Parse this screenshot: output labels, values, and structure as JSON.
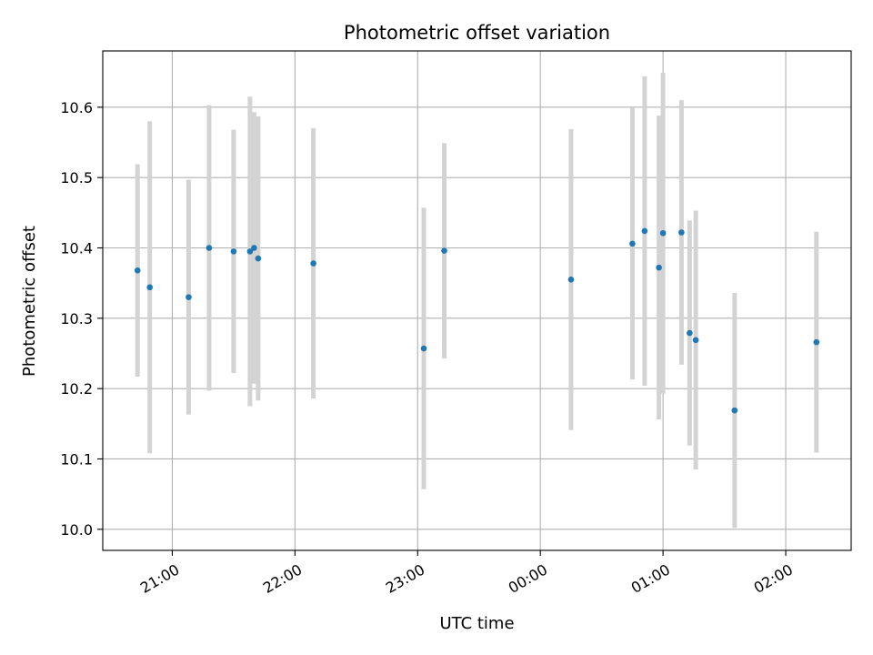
{
  "chart_data": {
    "type": "scatter",
    "title": "Photometric offset variation",
    "xlabel": "UTC time",
    "ylabel": "Photometric offset",
    "x_axis": "time",
    "ylim": [
      9.97,
      10.68
    ],
    "xlim": [
      "2000-01-01T20:26:00",
      "2000-01-02T02:32:00"
    ],
    "grid": true,
    "x_ticks": [
      {
        "label": "21:00",
        "value": "2000-01-01T21:00:00"
      },
      {
        "label": "22:00",
        "value": "2000-01-01T22:00:00"
      },
      {
        "label": "23:00",
        "value": "2000-01-01T23:00:00"
      },
      {
        "label": "00:00",
        "value": "2000-01-02T00:00:00"
      },
      {
        "label": "01:00",
        "value": "2000-01-02T01:00:00"
      },
      {
        "label": "02:00",
        "value": "2000-01-02T02:00:00"
      }
    ],
    "y_ticks": [
      {
        "label": "10.0",
        "value": 10.0
      },
      {
        "label": "10.1",
        "value": 10.1
      },
      {
        "label": "10.2",
        "value": 10.2
      },
      {
        "label": "10.3",
        "value": 10.3
      },
      {
        "label": "10.4",
        "value": 10.4
      },
      {
        "label": "10.5",
        "value": 10.5
      },
      {
        "label": "10.6",
        "value": 10.6
      }
    ],
    "colors": {
      "points": "#1f77b4",
      "errorbars": "#d3d3d3",
      "grid": "#b0b0b0"
    },
    "series": [
      {
        "points": [
          {
            "x": "2000-01-01T20:43:00",
            "y": 10.368,
            "err": 0.151
          },
          {
            "x": "2000-01-01T20:49:00",
            "y": 10.344,
            "err": 0.236
          },
          {
            "x": "2000-01-01T21:08:00",
            "y": 10.33,
            "err": 0.167
          },
          {
            "x": "2000-01-01T21:18:00",
            "y": 10.4,
            "err": 0.203
          },
          {
            "x": "2000-01-01T21:30:00",
            "y": 10.395,
            "err": 0.173
          },
          {
            "x": "2000-01-01T21:38:00",
            "y": 10.395,
            "err": 0.22
          },
          {
            "x": "2000-01-01T21:40:00",
            "y": 10.4,
            "err": 0.193
          },
          {
            "x": "2000-01-01T21:42:00",
            "y": 10.385,
            "err": 0.202
          },
          {
            "x": "2000-01-01T22:09:00",
            "y": 10.378,
            "err": 0.192
          },
          {
            "x": "2000-01-01T23:03:00",
            "y": 10.257,
            "err": 0.2
          },
          {
            "x": "2000-01-01T23:13:00",
            "y": 10.396,
            "err": 0.153
          },
          {
            "x": "2000-01-02T00:15:00",
            "y": 10.355,
            "err": 0.214
          },
          {
            "x": "2000-01-02T00:45:00",
            "y": 10.406,
            "err": 0.193
          },
          {
            "x": "2000-01-02T00:51:00",
            "y": 10.424,
            "err": 0.22
          },
          {
            "x": "2000-01-02T00:58:00",
            "y": 10.372,
            "err": 0.216
          },
          {
            "x": "2000-01-02T01:00:00",
            "y": 10.421,
            "err": 0.228
          },
          {
            "x": "2000-01-02T01:09:00",
            "y": 10.422,
            "err": 0.188
          },
          {
            "x": "2000-01-02T01:13:00",
            "y": 10.279,
            "err": 0.16
          },
          {
            "x": "2000-01-02T01:16:00",
            "y": 10.269,
            "err": 0.184
          },
          {
            "x": "2000-01-02T01:35:00",
            "y": 10.169,
            "err": 0.167
          },
          {
            "x": "2000-01-02T02:15:00",
            "y": 10.266,
            "err": 0.157
          }
        ]
      }
    ]
  }
}
